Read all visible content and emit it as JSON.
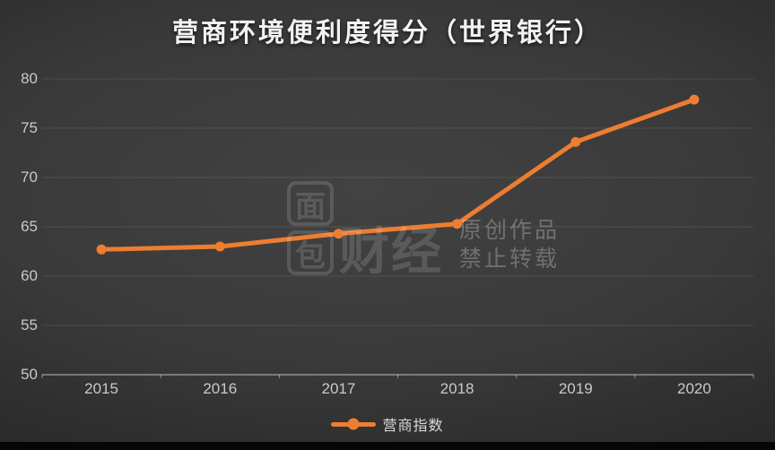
{
  "title": "营商环境便利度得分（世界银行）",
  "legend": {
    "label": "营商指数"
  },
  "watermark": {
    "seal_top": "面",
    "seal_bottom": "包",
    "brand": "财经",
    "line1": "原创作品",
    "line2": "禁止转载"
  },
  "colors": {
    "line": "#ED7D31",
    "background_center": "#3f3f3f",
    "background_edge": "#1b1b1b",
    "grid": "rgba(255,255,255,0.10)",
    "axis": "rgba(255,255,255,0.45)",
    "label": "#c9c9c9",
    "title": "#f2f2f2"
  },
  "chart_data": {
    "type": "line",
    "categories": [
      "2015",
      "2016",
      "2017",
      "2018",
      "2019",
      "2020"
    ],
    "series": [
      {
        "name": "营商指数",
        "values": [
          62.7,
          63.0,
          64.3,
          65.3,
          73.6,
          77.9
        ]
      }
    ],
    "title": "营商环境便利度得分（世界银行）",
    "xlabel": "",
    "ylabel": "",
    "ylim": [
      50,
      80
    ],
    "yticks": [
      50,
      55,
      60,
      65,
      70,
      75,
      80
    ],
    "grid": true,
    "legend_position": "bottom"
  }
}
